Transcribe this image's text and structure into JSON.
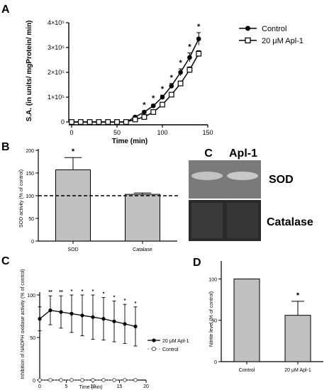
{
  "panels": {
    "a": "A",
    "b": "B",
    "c": "C",
    "d": "D"
  },
  "chart_data": [
    {
      "id": "A",
      "type": "line",
      "xlabel": "Time (min)",
      "ylabel": "S.A. (in units/ mgProtein/ min)",
      "xlim": [
        0,
        150
      ],
      "ylim": [
        0,
        400000
      ],
      "xticks": [
        "0",
        "50",
        "100",
        "150"
      ],
      "yticks": [
        "0",
        "1×10⁵",
        "2×10⁵",
        "3×10⁵",
        "4×10⁵"
      ],
      "x": [
        0,
        10,
        20,
        30,
        40,
        50,
        60,
        70,
        80,
        90,
        100,
        110,
        120,
        130,
        140
      ],
      "series": [
        {
          "name": "Control",
          "marker": "filled-circle",
          "values": [
            0,
            0,
            0,
            0,
            0,
            0,
            0,
            20000,
            40000,
            65000,
            100000,
            145000,
            200000,
            260000,
            335000
          ],
          "errors": [
            0,
            0,
            0,
            0,
            0,
            0,
            0,
            4000,
            5000,
            6000,
            8000,
            10000,
            14000,
            18000,
            25000
          ]
        },
        {
          "name": "20 μM Apl-1",
          "marker": "open-square",
          "values": [
            0,
            0,
            0,
            0,
            0,
            0,
            0,
            10000,
            20000,
            40000,
            70000,
            110000,
            155000,
            210000,
            275000
          ],
          "errors": [
            0,
            0,
            0,
            0,
            0,
            0,
            0,
            3000,
            4000,
            5000,
            6000,
            8000,
            10000,
            12000,
            12000
          ]
        }
      ],
      "annotations": [
        {
          "text": "*",
          "x": 80
        },
        {
          "text": "*",
          "x": 90
        },
        {
          "text": "*",
          "x": 100
        },
        {
          "text": "*",
          "x": 110
        },
        {
          "text": "*",
          "x": 120
        },
        {
          "text": "*",
          "x": 130
        },
        {
          "text": "*",
          "x": 140
        }
      ]
    },
    {
      "id": "B",
      "type": "bar",
      "ylabel": "SOD activity (% of control)",
      "ylim": [
        0,
        200
      ],
      "yticks": [
        "0",
        "50",
        "100",
        "150",
        "200"
      ],
      "categories": [
        "SOD",
        "Catalase"
      ],
      "values": [
        157,
        103
      ],
      "errors": [
        27,
        3
      ],
      "reference_line": 100,
      "annotations": [
        "*",
        ""
      ]
    },
    {
      "id": "C",
      "type": "line",
      "xlabel": "Time (min)",
      "ylabel": "Inhibition of NADPH oxidase activity (% of control)",
      "xlim": [
        0,
        20
      ],
      "ylim": [
        0,
        100
      ],
      "xticks": [
        "0",
        "5",
        "10",
        "15",
        "20"
      ],
      "yticks": [
        "0",
        "50",
        "100"
      ],
      "x": [
        0,
        2,
        4,
        6,
        8,
        10,
        12,
        14,
        16,
        18
      ],
      "series": [
        {
          "name": "20 μM Apl-1",
          "marker": "filled-circle",
          "values": [
            72,
            82,
            80,
            78,
            76,
            74,
            72,
            69,
            66,
            63
          ],
          "errors": [
            14,
            17,
            19,
            22,
            24,
            26,
            25,
            24,
            23,
            23
          ]
        },
        {
          "name": "Control",
          "marker": "open-circle",
          "values": [
            0,
            0,
            0,
            0,
            0,
            0,
            0,
            0,
            0,
            0
          ],
          "errors": [
            0,
            0,
            0,
            0,
            0,
            0,
            0,
            0,
            0,
            0
          ]
        }
      ],
      "annotations": [
        {
          "text": "**",
          "x": 2
        },
        {
          "text": "**",
          "x": 4
        },
        {
          "text": "*",
          "x": 6
        },
        {
          "text": "*",
          "x": 8
        },
        {
          "text": "*",
          "x": 10
        },
        {
          "text": "*",
          "x": 12
        },
        {
          "text": "*",
          "x": 14
        },
        {
          "text": "*",
          "x": 16
        },
        {
          "text": "*",
          "x": 18
        }
      ]
    },
    {
      "id": "D",
      "type": "bar",
      "ylabel": "Nitrite level (% of control)",
      "ylim": [
        0,
        120
      ],
      "yticks": [
        "0",
        "50",
        "100"
      ],
      "categories": [
        "Control",
        "20 μM Apl-1"
      ],
      "values": [
        100,
        56
      ],
      "errors": [
        0,
        17
      ],
      "annotations": [
        "",
        "*"
      ]
    }
  ],
  "gel": {
    "lanes": [
      "C",
      "Apl-1"
    ],
    "rows": [
      "SOD",
      "Catalase"
    ]
  },
  "colors": {
    "bar_fill": "#c0c0c0",
    "gel_top": "#7a7a7a",
    "gel_bottom": "#2a2a2a"
  }
}
